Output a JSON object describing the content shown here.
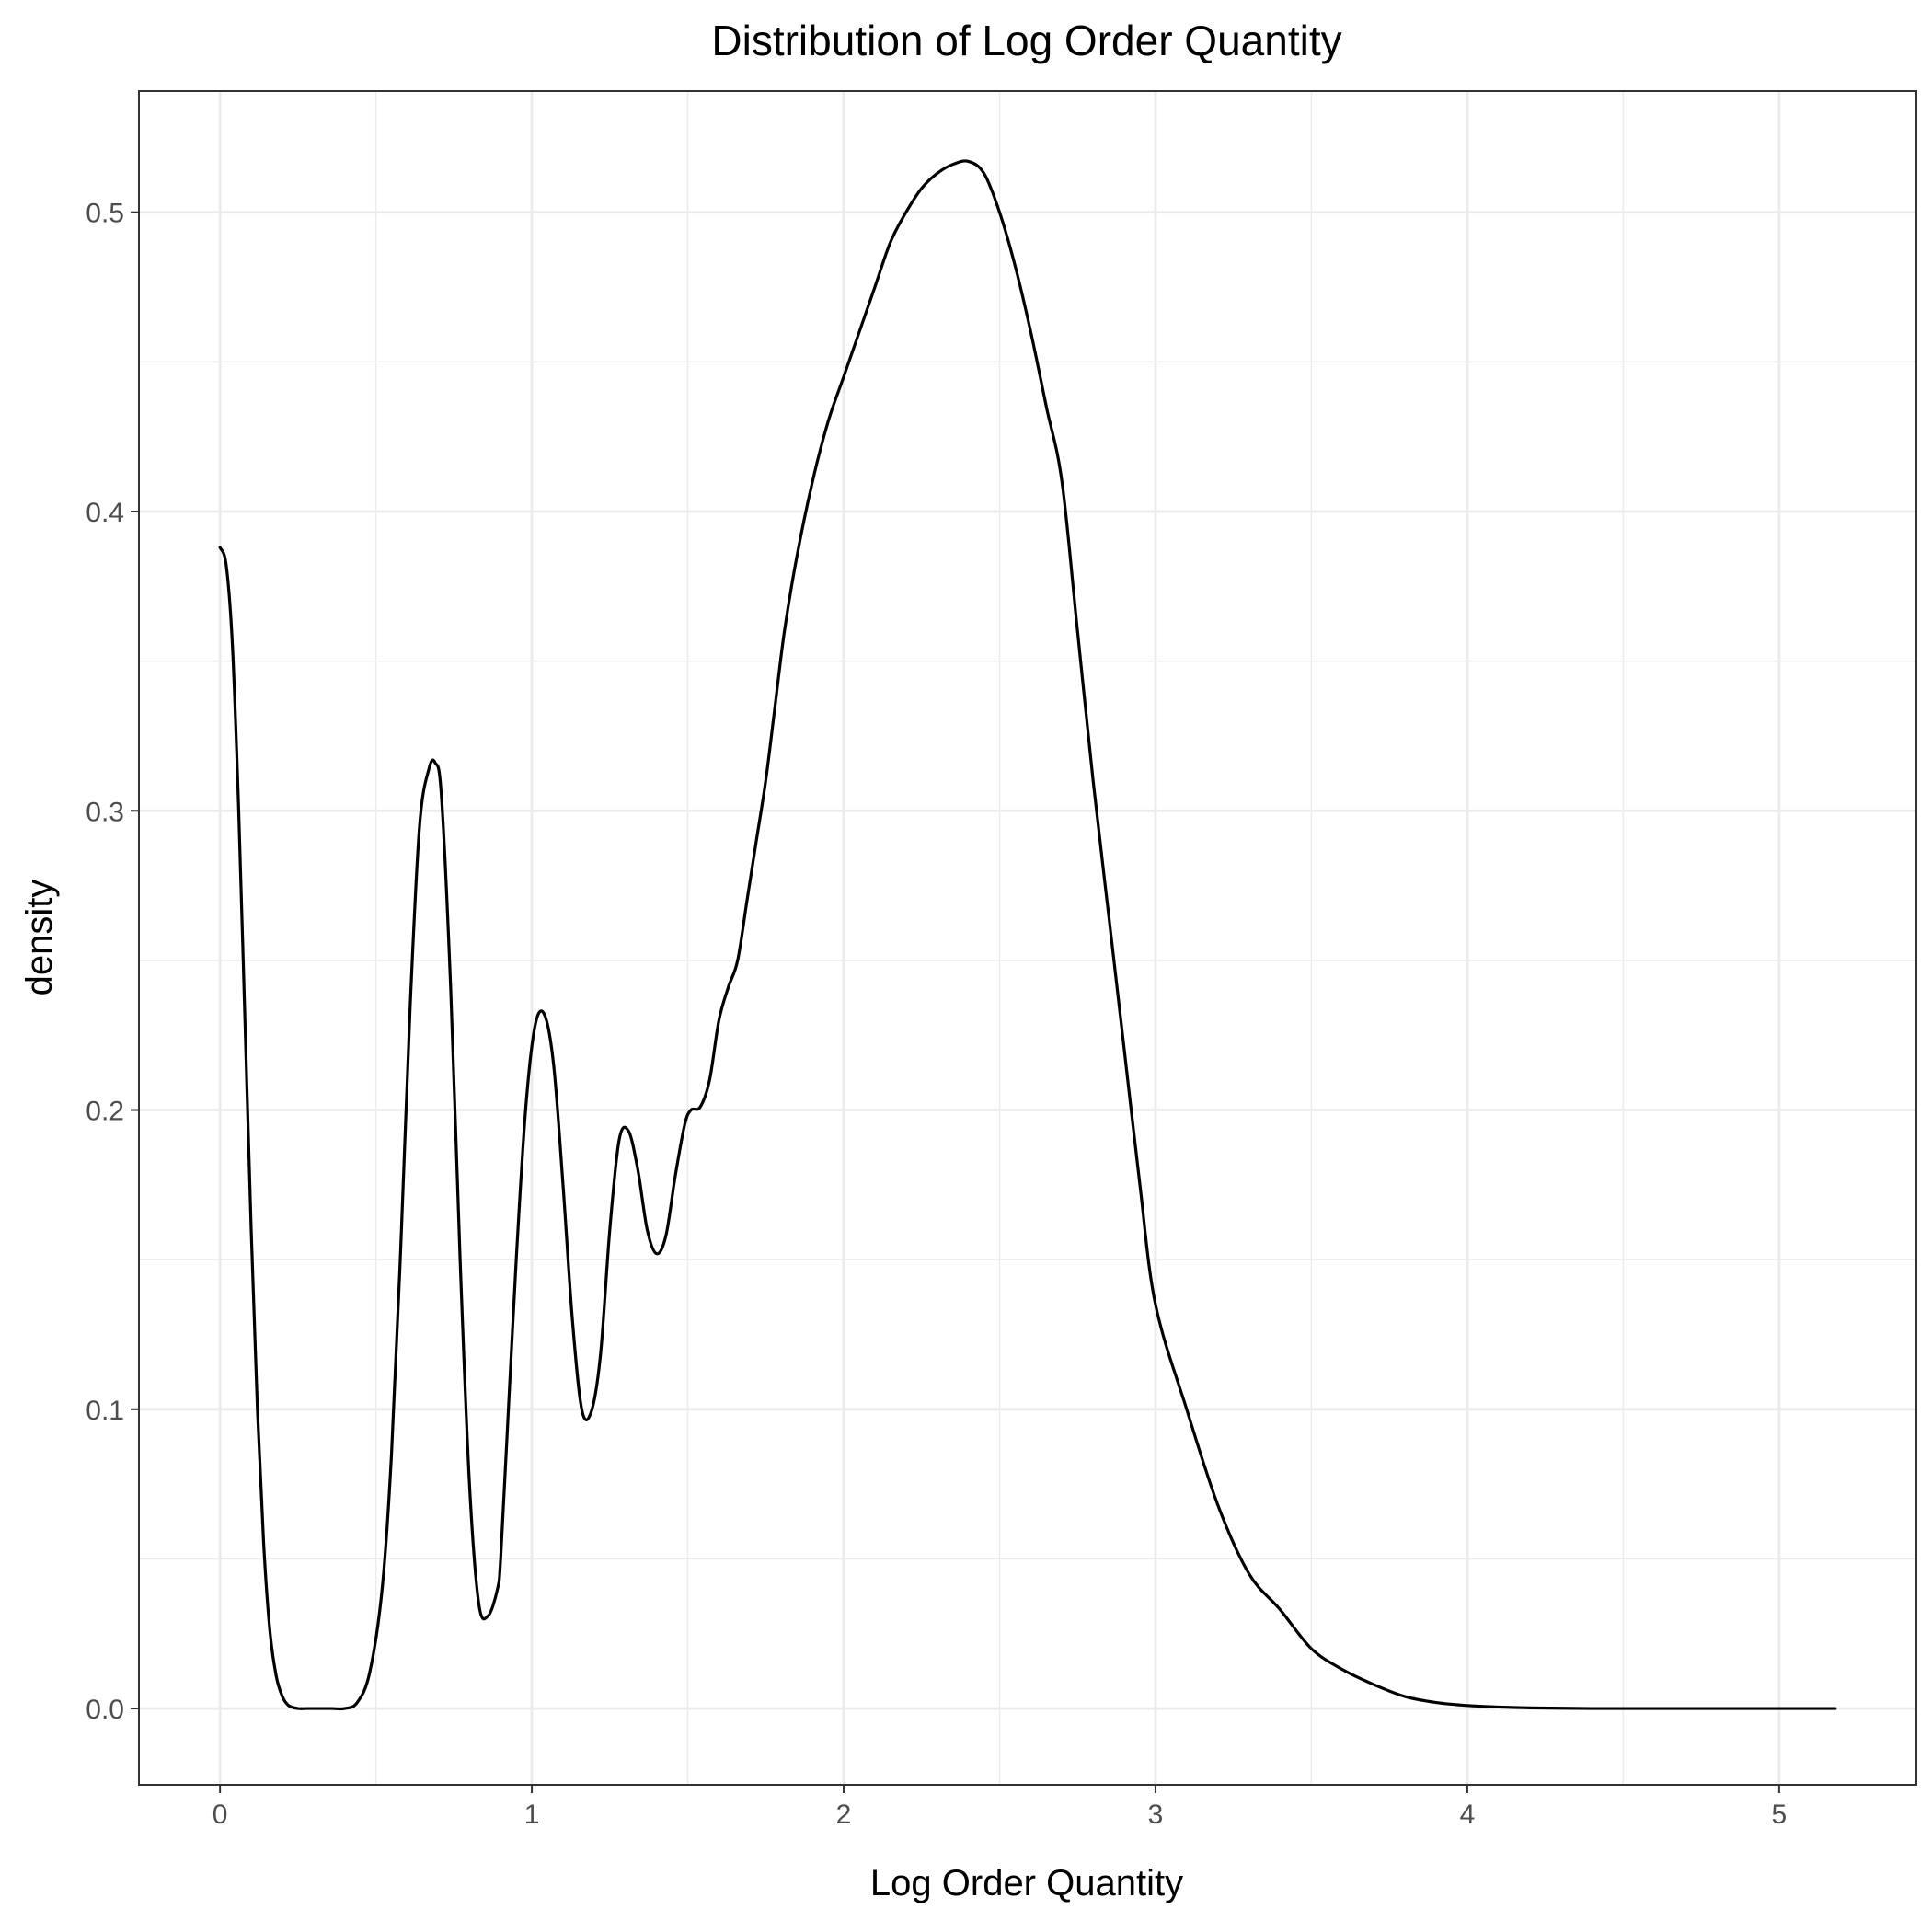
{
  "chart_data": {
    "type": "line",
    "title": "Distribution of Log Order Quantity",
    "xlabel": "Log Order Quantity",
    "ylabel": "density",
    "xlim": [
      -0.26,
      5.44
    ],
    "ylim": [
      -0.0255,
      0.5405
    ],
    "x_ticks": [
      0,
      1,
      2,
      3,
      4,
      5
    ],
    "x_tick_labels": [
      "0",
      "1",
      "2",
      "3",
      "4",
      "5"
    ],
    "y_ticks": [
      0.0,
      0.1,
      0.2,
      0.3,
      0.4,
      0.5
    ],
    "y_tick_labels": [
      "0.0",
      "0.1",
      "0.2",
      "0.3",
      "0.4",
      "0.5"
    ],
    "grid": true,
    "legend": "none",
    "colors": {
      "line": "#000000",
      "grid": "#ebebeb",
      "panel_border": "#333333",
      "tick_text": "#4d4d4d"
    },
    "series": [
      {
        "x": [
          0.0,
          0.02,
          0.04,
          0.06,
          0.08,
          0.1,
          0.12,
          0.14,
          0.16,
          0.18,
          0.2,
          0.22,
          0.25,
          0.28,
          0.32,
          0.36,
          0.4,
          0.44,
          0.48,
          0.52,
          0.55,
          0.58,
          0.61,
          0.64,
          0.67,
          0.69,
          0.71,
          0.74,
          0.77,
          0.8,
          0.83,
          0.86,
          0.89,
          0.9,
          0.92,
          0.95,
          0.98,
          1.01,
          1.04,
          1.07,
          1.1,
          1.13,
          1.16,
          1.19,
          1.22,
          1.25,
          1.28,
          1.31,
          1.34,
          1.37,
          1.4,
          1.43,
          1.46,
          1.49,
          1.51,
          1.54,
          1.57,
          1.6,
          1.63,
          1.66,
          1.69,
          1.72,
          1.75,
          1.78,
          1.81,
          1.85,
          1.9,
          1.95,
          2.0,
          2.05,
          2.1,
          2.15,
          2.2,
          2.25,
          2.3,
          2.35,
          2.4,
          2.45,
          2.5,
          2.55,
          2.6,
          2.65,
          2.7,
          2.75,
          2.8,
          2.85,
          2.9,
          2.95,
          3.0,
          3.1,
          3.2,
          3.3,
          3.4,
          3.5,
          3.6,
          3.7,
          3.8,
          3.9,
          4.0,
          4.1,
          4.2,
          4.3,
          4.4,
          4.5,
          4.6,
          4.7,
          4.8,
          4.9,
          5.0,
          5.1,
          5.18
        ],
        "y": [
          0.388,
          0.382,
          0.355,
          0.3,
          0.23,
          0.16,
          0.1,
          0.055,
          0.026,
          0.011,
          0.004,
          0.001,
          0.0,
          0.0,
          0.0,
          0.0,
          0.0,
          0.002,
          0.012,
          0.04,
          0.085,
          0.155,
          0.235,
          0.295,
          0.314,
          0.316,
          0.305,
          0.24,
          0.15,
          0.075,
          0.035,
          0.031,
          0.04,
          0.05,
          0.09,
          0.15,
          0.2,
          0.228,
          0.232,
          0.215,
          0.175,
          0.13,
          0.1,
          0.099,
          0.118,
          0.16,
          0.19,
          0.193,
          0.18,
          0.16,
          0.152,
          0.158,
          0.178,
          0.195,
          0.2,
          0.201,
          0.21,
          0.23,
          0.241,
          0.25,
          0.27,
          0.29,
          0.31,
          0.335,
          0.36,
          0.385,
          0.41,
          0.43,
          0.445,
          0.46,
          0.475,
          0.49,
          0.5,
          0.508,
          0.513,
          0.516,
          0.517,
          0.513,
          0.5,
          0.482,
          0.46,
          0.435,
          0.41,
          0.36,
          0.31,
          0.265,
          0.22,
          0.175,
          0.135,
          0.1,
          0.068,
          0.045,
          0.033,
          0.02,
          0.013,
          0.008,
          0.004,
          0.002,
          0.001,
          0.0005,
          0.0002,
          0.0001,
          0.0,
          0.0,
          0.0,
          0.0,
          0.0,
          0.0,
          0.0,
          0.0,
          0.0
        ]
      }
    ]
  }
}
